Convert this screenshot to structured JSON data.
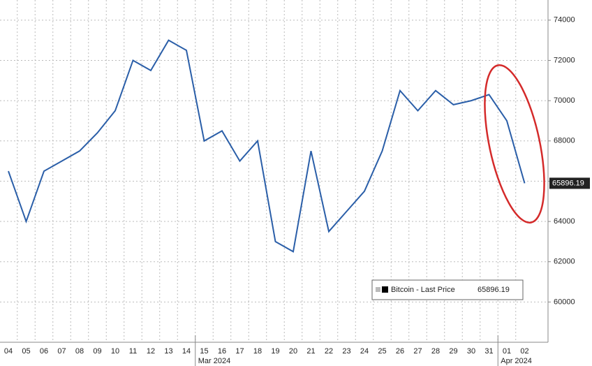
{
  "chart_data": {
    "type": "line",
    "x": [
      "2024-03-04",
      "2024-03-05",
      "2024-03-06",
      "2024-03-07",
      "2024-03-08",
      "2024-03-09",
      "2024-03-10",
      "2024-03-11",
      "2024-03-12",
      "2024-03-13",
      "2024-03-14",
      "2024-03-15",
      "2024-03-16",
      "2024-03-17",
      "2024-03-18",
      "2024-03-19",
      "2024-03-20",
      "2024-03-21",
      "2024-03-22",
      "2024-03-23",
      "2024-03-24",
      "2024-03-25",
      "2024-03-26",
      "2024-03-27",
      "2024-03-28",
      "2024-03-29",
      "2024-03-30",
      "2024-03-31",
      "2024-04-01",
      "2024-04-02"
    ],
    "series": [
      {
        "name": "Bitcoin - Last Price",
        "color": "#2a5ea8",
        "values": [
          66500,
          64000,
          66500,
          67000,
          67500,
          68400,
          69500,
          72000,
          71500,
          73000,
          72500,
          68000,
          68500,
          67000,
          68000,
          63000,
          62500,
          67500,
          63500,
          64500,
          65500,
          67500,
          70500,
          69500,
          70500,
          69800,
          70000,
          70300,
          69000,
          65896.19
        ]
      }
    ],
    "last_price": 65896.19,
    "ylim": [
      58000,
      75000
    ],
    "yticks": [
      60000,
      62000,
      64000,
      66000,
      68000,
      70000,
      72000,
      74000
    ],
    "xticks": [
      {
        "value": "2024-03-04",
        "label": "04"
      },
      {
        "value": "2024-03-05",
        "label": "05"
      },
      {
        "value": "2024-03-06",
        "label": "06"
      },
      {
        "value": "2024-03-07",
        "label": "07"
      },
      {
        "value": "2024-03-08",
        "label": "08"
      },
      {
        "value": "2024-03-09",
        "label": "09"
      },
      {
        "value": "2024-03-10",
        "label": "10"
      },
      {
        "value": "2024-03-11",
        "label": "11"
      },
      {
        "value": "2024-03-12",
        "label": "12"
      },
      {
        "value": "2024-03-13",
        "label": "13"
      },
      {
        "value": "2024-03-14",
        "label": "14"
      },
      {
        "value": "2024-03-15",
        "label": "15"
      },
      {
        "value": "2024-03-16",
        "label": "16"
      },
      {
        "value": "2024-03-17",
        "label": "17"
      },
      {
        "value": "2024-03-18",
        "label": "18"
      },
      {
        "value": "2024-03-19",
        "label": "19"
      },
      {
        "value": "2024-03-20",
        "label": "20"
      },
      {
        "value": "2024-03-21",
        "label": "21"
      },
      {
        "value": "2024-03-22",
        "label": "22"
      },
      {
        "value": "2024-03-23",
        "label": "23"
      },
      {
        "value": "2024-03-24",
        "label": "24"
      },
      {
        "value": "2024-03-25",
        "label": "25"
      },
      {
        "value": "2024-03-26",
        "label": "26"
      },
      {
        "value": "2024-03-27",
        "label": "27"
      },
      {
        "value": "2024-03-28",
        "label": "28"
      },
      {
        "value": "2024-03-29",
        "label": "29"
      },
      {
        "value": "2024-03-30",
        "label": "30"
      },
      {
        "value": "2024-03-31",
        "label": "31"
      },
      {
        "value": "2024-04-01",
        "label": "01"
      },
      {
        "value": "2024-04-02",
        "label": "02"
      }
    ],
    "month_labels": [
      {
        "value": "2024-03-15",
        "label": "Mar 2024"
      },
      {
        "value": "2024-04-01",
        "label": "Apr 2024"
      }
    ],
    "grid": true
  }
}
